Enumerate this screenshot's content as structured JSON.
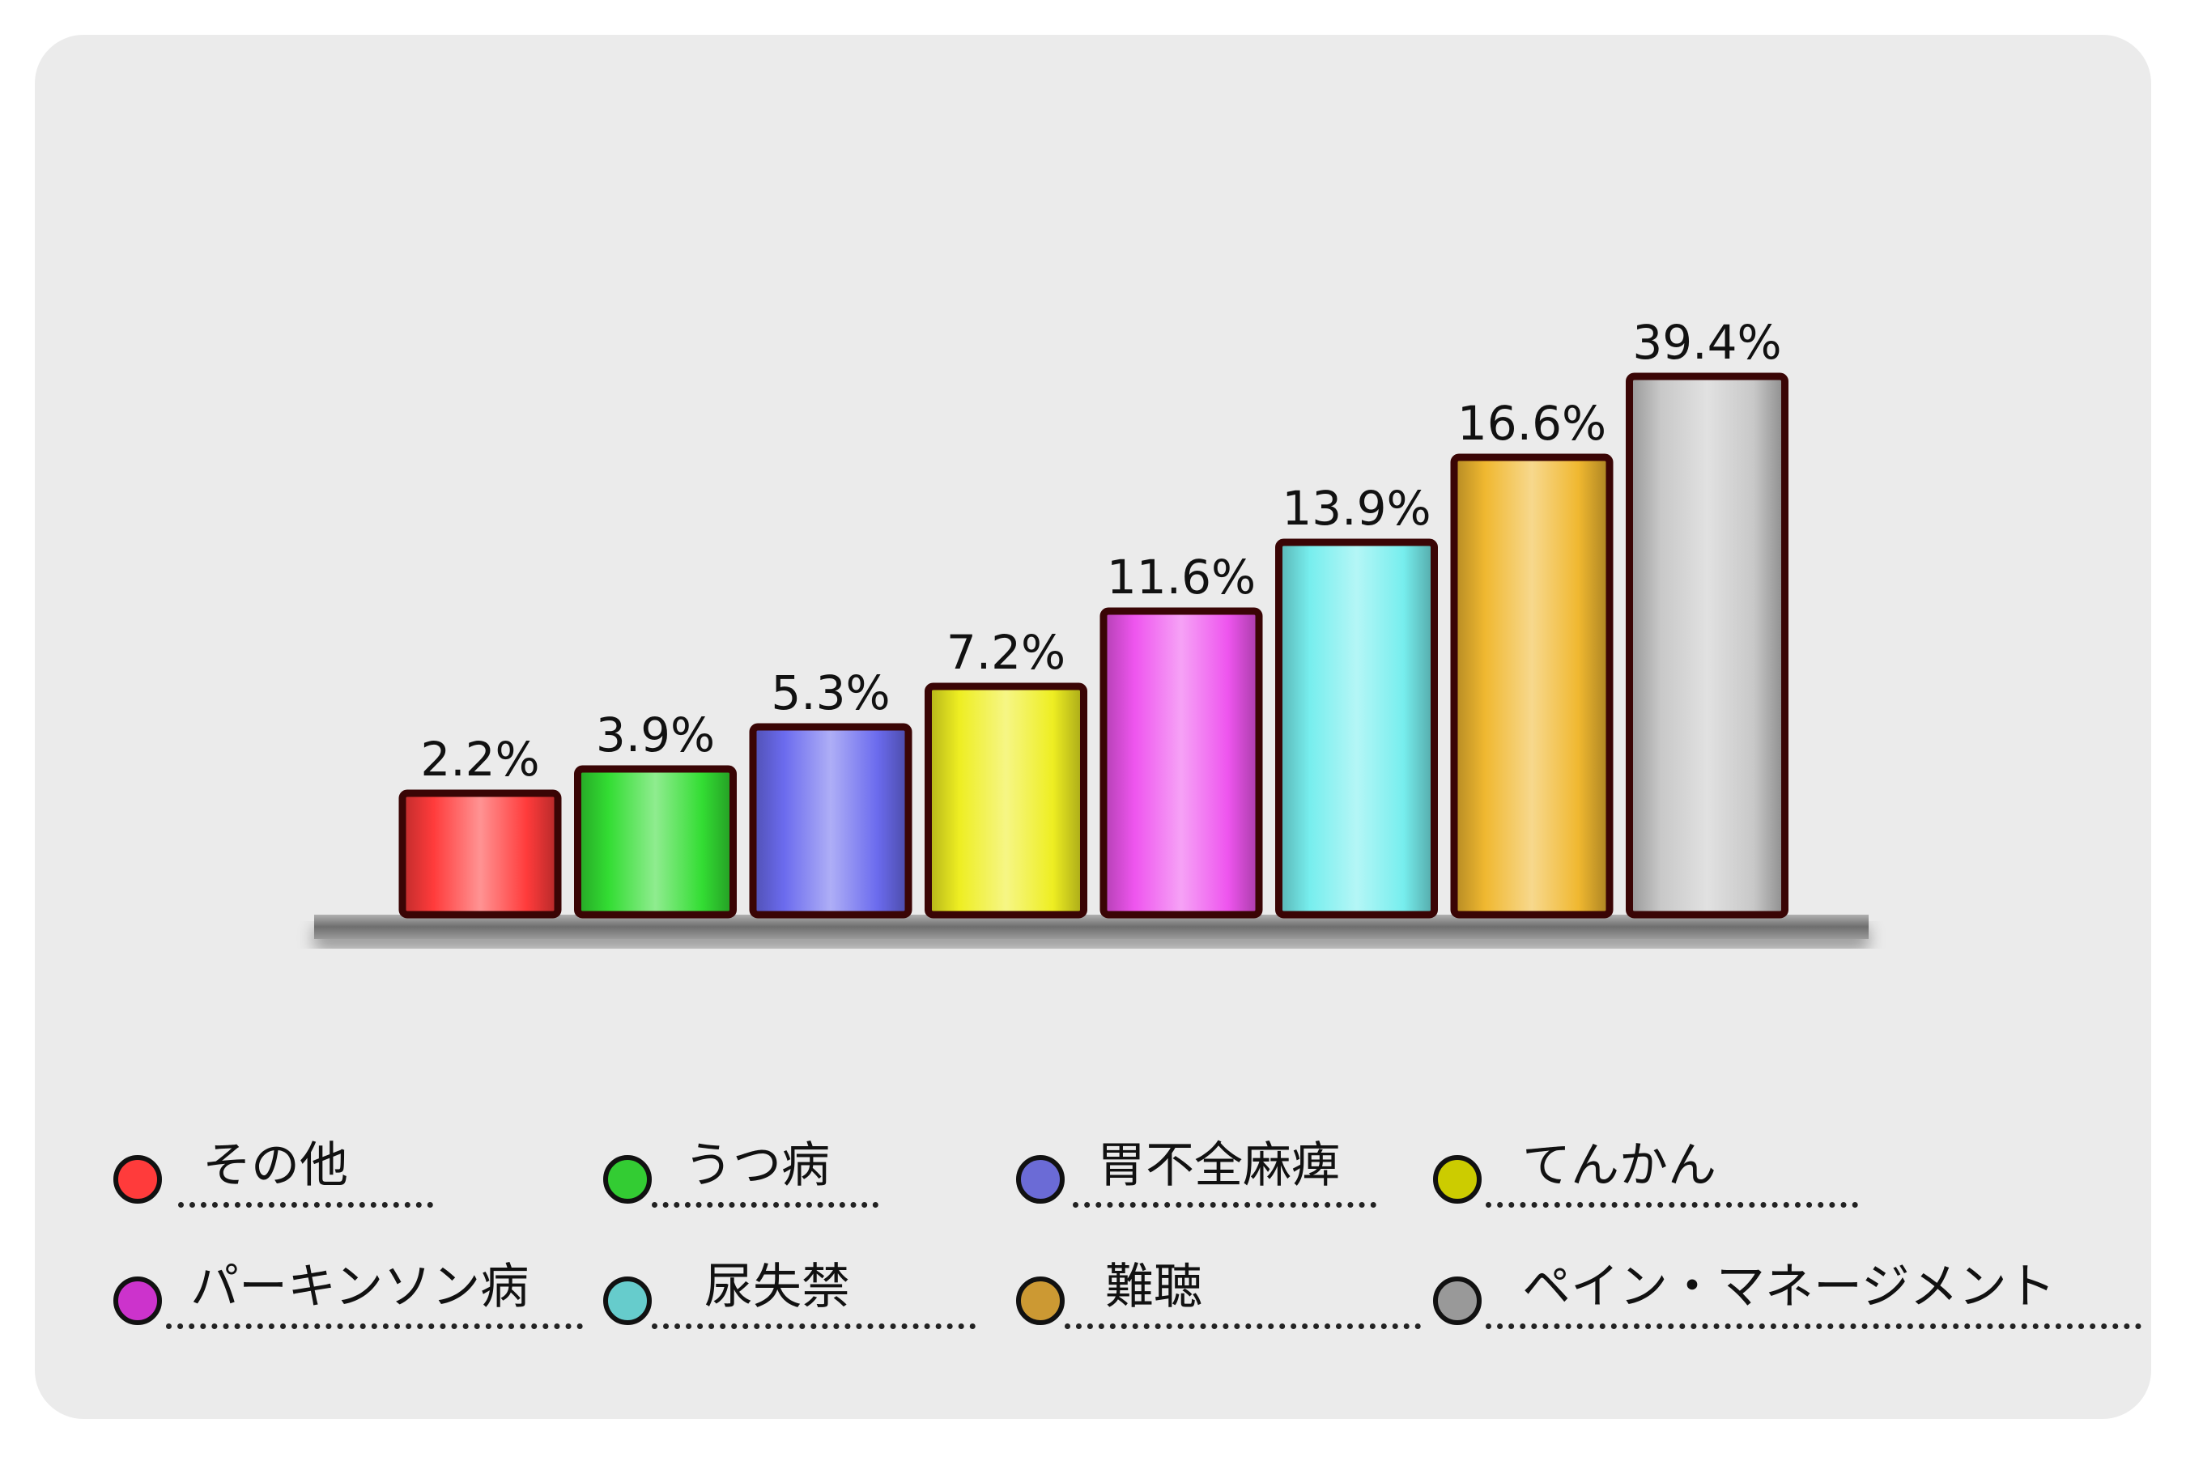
{
  "chart_data": {
    "type": "bar",
    "categories": [
      "その他",
      "うつ病",
      "胃不全麻痺",
      "てんかん",
      "パーキンソン病",
      "尿失禁",
      "難聴",
      "ペイン・マネージメント"
    ],
    "values": [
      2.2,
      3.9,
      5.3,
      7.2,
      11.6,
      13.9,
      16.6,
      39.4
    ],
    "value_labels": [
      "2.2%",
      "3.9%",
      "5.3%",
      "7.2%",
      "11.6%",
      "13.9%",
      "16.6%",
      "39.4%"
    ],
    "colors": [
      "#ff3b3b",
      "#33dd33",
      "#6b6bee",
      "#eeee22",
      "#ee55ee",
      "#77eeee",
      "#f0b830",
      "#c8c8c8"
    ],
    "legend_colors": [
      "#ff3b3b",
      "#33cc33",
      "#6b6bd6",
      "#cccc00",
      "#cc33cc",
      "#66cccc",
      "#cc9933",
      "#999999"
    ],
    "legend_placement": "bottom",
    "grid": false,
    "title": "",
    "xlabel": "",
    "ylabel": ""
  }
}
